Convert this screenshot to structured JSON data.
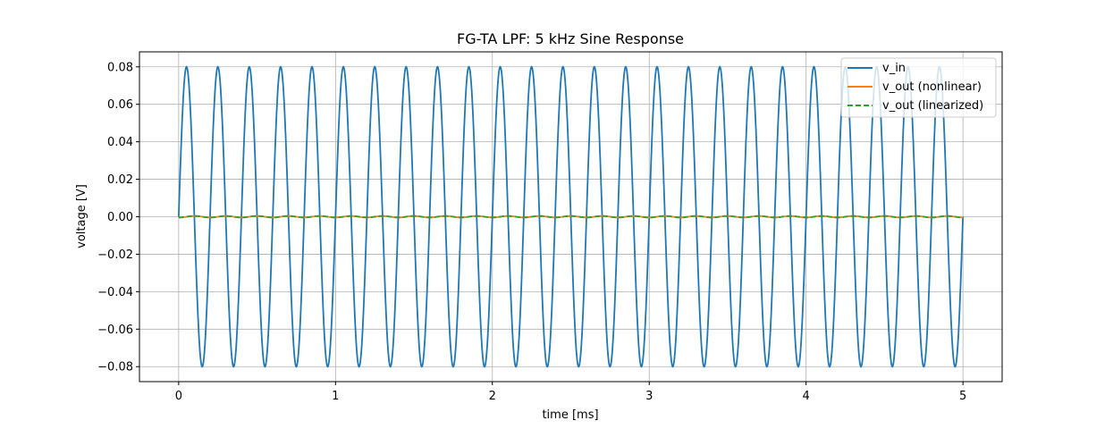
{
  "chart_data": {
    "type": "line",
    "title": "FG-TA LPF: 5 kHz Sine Response",
    "xlabel": "time [ms]",
    "ylabel": "voltage [V]",
    "xlim": [
      -0.25,
      5.25
    ],
    "ylim": [
      -0.088,
      0.088
    ],
    "xticks": [
      0,
      1,
      2,
      3,
      4,
      5
    ],
    "xtick_labels": [
      "0",
      "1",
      "2",
      "3",
      "4",
      "5"
    ],
    "yticks": [
      -0.08,
      -0.06,
      -0.04,
      -0.02,
      0.0,
      0.02,
      0.04,
      0.06,
      0.08
    ],
    "ytick_labels": [
      "−0.08",
      "−0.06",
      "−0.04",
      "−0.02",
      "0.00",
      "0.02",
      "0.04",
      "0.06",
      "0.08"
    ],
    "grid": true,
    "legend_position": "top-right",
    "series": [
      {
        "name": "v_in",
        "color": "#1f77b4",
        "style": "solid",
        "function": "sine",
        "amplitude": 0.08,
        "frequency_khz": 5,
        "x_range": [
          0,
          5
        ]
      },
      {
        "name": "v_out (nonlinear)",
        "color": "#ff7f0e",
        "style": "solid",
        "function": "sine",
        "amplitude": 0.0004,
        "frequency_khz": 5,
        "phase_deg": -90,
        "x_range": [
          0,
          5
        ]
      },
      {
        "name": "v_out (linearized)",
        "color": "#2ca02c",
        "style": "dashed",
        "function": "sine",
        "amplitude": 0.0004,
        "frequency_khz": 5,
        "phase_deg": -90,
        "x_range": [
          0,
          5
        ]
      }
    ]
  }
}
